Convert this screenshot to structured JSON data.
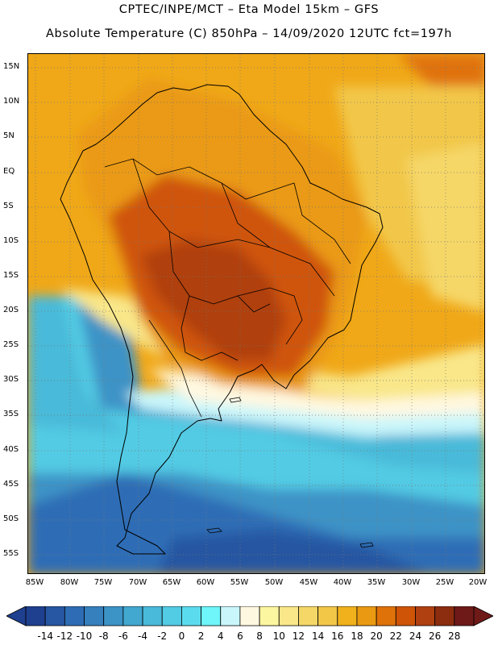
{
  "header": {
    "line1": "CPTEC/INPE/MCT –   Eta Model 15km – GFS",
    "line2": "Absolute Temperature (C) 850hPa – 14/09/2020 12UTC fct=197h"
  },
  "map": {
    "lat_labels": [
      "15N",
      "10N",
      "5N",
      "EQ",
      "5S",
      "10S",
      "15S",
      "20S",
      "25S",
      "30S",
      "35S",
      "40S",
      "45S",
      "50S",
      "55S"
    ],
    "lon_labels": [
      "85W",
      "80W",
      "75W",
      "70W",
      "65W",
      "60W",
      "55W",
      "50W",
      "45W",
      "40W",
      "35W",
      "30W",
      "25W",
      "20W"
    ],
    "extent": {
      "lon": [
        -86,
        -19
      ],
      "lat": [
        -58.5,
        17
      ]
    },
    "gridlines": "dotted",
    "coastlines": true,
    "political_boundaries": true
  },
  "colorbar": {
    "tick_labels": [
      "-14",
      "-12",
      "-10",
      "-8",
      "-6",
      "-4",
      "-2",
      "0",
      "2",
      "4",
      "6",
      "8",
      "10",
      "12",
      "14",
      "16",
      "18",
      "20",
      "22",
      "24",
      "26",
      "28"
    ],
    "colors": [
      "#1f3f8f",
      "#2757a2",
      "#2e6db5",
      "#3680be",
      "#3c93c6",
      "#42a8cf",
      "#49bad9",
      "#52cbe4",
      "#5bdcee",
      "#6ef6fa",
      "#c9f6fb",
      "#fff8e0",
      "#fdf6a0",
      "#f9e78a",
      "#f5d768",
      "#f2c748",
      "#f0b11c",
      "#ea9a12",
      "#e0720a",
      "#cf5408",
      "#b04010",
      "#8c2d10",
      "#6e1a18"
    ],
    "extend": "both"
  }
}
